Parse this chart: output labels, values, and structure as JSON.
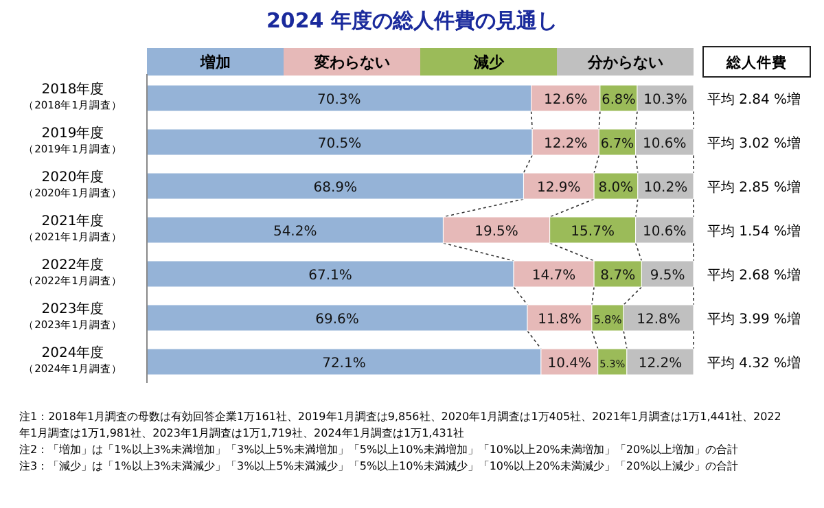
{
  "chart_data": {
    "type": "bar",
    "orientation": "horizontal",
    "stacked": true,
    "title": "2024 年度の総人件費の見通し",
    "categories": [
      "2018年度（2018年1月調査）",
      "2019年度（2019年1月調査）",
      "2020年度（2020年1月調査）",
      "2021年度（2021年1月調査）",
      "2022年度（2022年1月調査）",
      "2023年度（2023年1月調査）",
      "2024年度（2024年1月調査）"
    ],
    "xlim": [
      0,
      100
    ],
    "legend": "top",
    "tick_labels": "y",
    "series": [
      {
        "name": "増加",
        "color": "#95b3d7",
        "values": [
          70.3,
          70.5,
          68.9,
          54.2,
          67.1,
          69.6,
          72.1
        ],
        "value_labels": [
          "70.3%",
          "70.5%",
          "68.9%",
          "54.2%",
          "67.1%",
          "69.6%",
          "72.1%"
        ]
      },
      {
        "name": "変わらない",
        "color": "#e6b9b8",
        "values": [
          12.6,
          12.2,
          12.9,
          19.5,
          14.7,
          11.8,
          10.4
        ],
        "value_labels": [
          "12.6%",
          "12.2%",
          "12.9%",
          "19.5%",
          "14.7%",
          "11.8%",
          "10.4%"
        ]
      },
      {
        "name": "減少",
        "color": "#9bbb59",
        "values": [
          6.8,
          6.7,
          8.0,
          15.7,
          8.7,
          5.8,
          5.3
        ],
        "value_labels": [
          "6.8%",
          "6.7%",
          "8.0%",
          "15.7%",
          "8.7%",
          "5.8%",
          "5.3%"
        ]
      },
      {
        "name": "分からない",
        "color": "#c0c0c0",
        "values": [
          10.3,
          10.6,
          10.2,
          10.6,
          9.5,
          12.8,
          12.2
        ],
        "value_labels": [
          "10.3%",
          "10.6%",
          "10.2%",
          "10.6%",
          "9.5%",
          "12.8%",
          "12.2%"
        ]
      }
    ],
    "annotations": [
      "総人件費",
      "平均 2.84 %増",
      "平均 3.02 %増",
      "平均 2.85 %増",
      "平均 1.54 %増",
      "平均 2.68 %増",
      "平均 3.99 %増",
      "平均 4.32 %増",
      "注1：2018年1月調査の母数は有効回答企業1万161社、2019年1月調査は9,856社、2020年1月調査は1万405社、2021年1月調査は1万1,441社、2022年1月調査は1万1,981社、2023年1月調査は1万1,719社、2024年1月調査は1万1,431社",
      "注2：「増加」は「1%以上3%未満増加」「3%以上5%未満増加」「5%以上10%未満増加」「10%以上20%未満増加」「20%以上増加」の合計",
      "注3：「減少」は「1%以上3%未満減少」「3%以上5%未満減少」「5%以上10%未満減少」「10%以上20%未満減少」「20%以上減少」の合計"
    ]
  }
}
